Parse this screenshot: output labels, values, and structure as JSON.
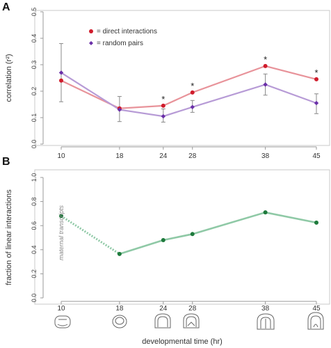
{
  "chart_data": [
    {
      "type": "line",
      "panel": "A",
      "ylabel": "correlation (r²)",
      "xlabel": "",
      "x": [
        10,
        18,
        24,
        28,
        38,
        45
      ],
      "xtick_labels": [
        "10",
        "18",
        "24",
        "28",
        "38",
        "45"
      ],
      "ylim": [
        0.0,
        0.5
      ],
      "yticks": [
        "0.0",
        "0.1",
        "0.2",
        "0.3",
        "0.4",
        "0.5"
      ],
      "series": [
        {
          "name": "= direct interactions",
          "color": "#e8939a",
          "marker_color": "#d01c2c",
          "values": [
            0.24,
            0.135,
            0.145,
            0.195,
            0.295,
            0.245
          ]
        },
        {
          "name": "= random pairs",
          "color": "#b79bd6",
          "marker_color": "#6a2fa8",
          "values": [
            0.27,
            0.13,
            0.105,
            0.14,
            0.225,
            0.155
          ],
          "error": [
            [
              0.16,
              0.38
            ],
            [
              0.085,
              0.18
            ],
            [
              0.083,
              0.133
            ],
            [
              0.12,
              0.165
            ],
            [
              0.185,
              0.265
            ],
            [
              0.115,
              0.19
            ]
          ]
        }
      ],
      "significance_marks": [
        {
          "x": 24,
          "text": "*"
        },
        {
          "x": 28,
          "text": "*"
        },
        {
          "x": 38,
          "text": "*"
        },
        {
          "x": 45,
          "text": "*"
        }
      ],
      "legend_position": "top-left",
      "grid": false
    },
    {
      "type": "line",
      "panel": "B",
      "ylabel": "fraction of linear interactions",
      "xlabel": "developmental time (hr)",
      "x": [
        10,
        18,
        24,
        28,
        38,
        45
      ],
      "xtick_labels": [
        "10",
        "18",
        "24",
        "28",
        "38",
        "45"
      ],
      "ylim": [
        0.0,
        1.0
      ],
      "yticks": [
        "0.0",
        "0.2",
        "0.4",
        "0.6",
        "0.8",
        "1.0"
      ],
      "series": [
        {
          "color": "#8fc9a6",
          "marker_color": "#1e7a3c",
          "values": [
            0.68,
            0.365,
            0.48,
            0.53,
            0.71,
            0.625
          ]
        }
      ],
      "annotation": "maternal transcripts",
      "grid": false
    }
  ],
  "panel_labels": [
    "A",
    "B"
  ]
}
